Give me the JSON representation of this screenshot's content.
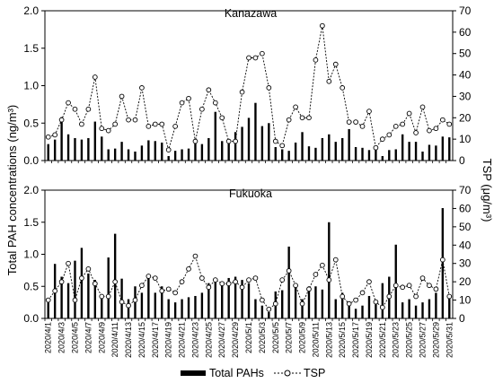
{
  "chart_data": {
    "type": "bar",
    "ylabel_left": "Total PAH concentrations (ng/m³)",
    "ylabel_right": "TSP (μg/m³)",
    "ylim_left": [
      0,
      2.0
    ],
    "ylim_right": [
      0,
      70
    ],
    "yticks_left": [
      "0.0",
      "0.5",
      "1.0",
      "1.5",
      "2.0"
    ],
    "yticks_right": [
      "0",
      "10",
      "20",
      "30",
      "40",
      "50",
      "60",
      "70"
    ],
    "dates": [
      "2020/4/1",
      "2020/4/2",
      "2020/4/3",
      "2020/4/4",
      "2020/4/5",
      "2020/4/6",
      "2020/4/7",
      "2020/4/8",
      "2020/4/9",
      "2020/4/10",
      "2020/4/11",
      "2020/4/12",
      "2020/4/13",
      "2020/4/14",
      "2020/4/15",
      "2020/4/16",
      "2020/4/17",
      "2020/4/18",
      "2020/4/19",
      "2020/4/20",
      "2020/4/21",
      "2020/4/22",
      "2020/4/23",
      "2020/4/24",
      "2020/4/25",
      "2020/4/26",
      "2020/4/27",
      "2020/4/28",
      "2020/4/29",
      "2020/4/30",
      "2020/5/1",
      "2020/5/2",
      "2020/5/3",
      "2020/5/4",
      "2020/5/5",
      "2020/5/6",
      "2020/5/7",
      "2020/5/8",
      "2020/5/9",
      "2020/5/10",
      "2020/5/11",
      "2020/5/12",
      "2020/5/13",
      "2020/5/14",
      "2020/5/15",
      "2020/5/16",
      "2020/5/17",
      "2020/5/18",
      "2020/5/19",
      "2020/5/20",
      "2020/5/21",
      "2020/5/22",
      "2020/5/23",
      "2020/5/24",
      "2020/5/25",
      "2020/5/26",
      "2020/5/27",
      "2020/5/28",
      "2020/5/29",
      "2020/5/30",
      "2020/5/31"
    ],
    "date_labels": [
      "2020/4/1",
      "2020/4/3",
      "2020/4/5",
      "2020/4/7",
      "2020/4/9",
      "2020/4/11",
      "2020/4/13",
      "2020/4/15",
      "2020/4/17",
      "2020/4/19",
      "2020/4/21",
      "2020/4/23",
      "2020/4/25",
      "2020/4/27",
      "2020/4/29",
      "2020/5/1",
      "2020/5/3",
      "2020/5/5",
      "2020/5/7",
      "2020/5/9",
      "2020/5/11",
      "2020/5/13",
      "2020/5/15",
      "2020/5/17",
      "2020/5/19",
      "2020/5/21",
      "2020/5/23",
      "2020/5/25",
      "2020/5/27",
      "2020/5/29",
      "2020/5/31"
    ],
    "legend": {
      "bars": "Total PAHs",
      "line": "TSP"
    },
    "panels": [
      {
        "title": "Kanazawa",
        "total_pahs": [
          0.22,
          0.28,
          0.58,
          0.35,
          0.3,
          0.28,
          0.3,
          0.52,
          0.32,
          0.15,
          0.16,
          0.25,
          0.15,
          0.12,
          0.2,
          0.27,
          0.26,
          0.24,
          0.06,
          0.13,
          0.15,
          0.16,
          0.28,
          0.22,
          0.3,
          0.65,
          0.26,
          0.24,
          0.38,
          0.45,
          0.57,
          0.77,
          0.46,
          0.5,
          0.18,
          0.15,
          0.13,
          0.24,
          0.38,
          0.19,
          0.17,
          0.3,
          0.35,
          0.25,
          0.3,
          0.42,
          0.18,
          0.17,
          0.14,
          0.17,
          0.06,
          0.14,
          0.15,
          0.35,
          0.25,
          0.25,
          0.12,
          0.21,
          0.2,
          0.32,
          0.31
        ],
        "tsp": [
          11,
          12,
          19,
          27,
          24,
          17,
          24,
          39,
          15,
          14,
          17,
          30,
          19,
          19,
          34,
          16,
          17,
          17,
          5,
          16,
          27,
          29,
          9,
          24,
          33,
          27,
          20,
          9,
          9,
          32,
          48,
          48,
          50,
          34,
          9,
          7,
          19,
          25,
          20,
          20,
          47,
          63,
          37,
          45,
          34,
          18,
          18,
          16,
          23,
          6,
          10,
          12,
          16,
          17,
          22,
          13,
          25,
          14,
          15,
          19,
          17
        ]
      },
      {
        "title": "Fukuoka",
        "total_pahs": [
          0.25,
          0.85,
          0.65,
          0.55,
          0.9,
          1.1,
          0.7,
          0.6,
          0.35,
          0.95,
          1.32,
          0.62,
          0.3,
          0.5,
          0.4,
          0.65,
          0.4,
          0.5,
          0.3,
          0.25,
          0.3,
          0.33,
          0.35,
          0.4,
          0.55,
          0.62,
          0.55,
          0.63,
          0.65,
          0.6,
          0.55,
          0.3,
          0.2,
          0.1,
          0.42,
          0.44,
          1.12,
          0.5,
          0.3,
          0.5,
          0.5,
          0.45,
          1.5,
          0.3,
          0.4,
          0.25,
          0.15,
          0.2,
          0.35,
          0.22,
          0.55,
          0.65,
          1.15,
          0.25,
          0.3,
          0.2,
          0.25,
          0.3,
          0.4,
          1.72,
          0.35
        ],
        "tsp": [
          10,
          15,
          20,
          30,
          10,
          22,
          27,
          19,
          12,
          12,
          20,
          9,
          7,
          10,
          18,
          23,
          22,
          15,
          16,
          14,
          20,
          27,
          34,
          22,
          17,
          21,
          19,
          19,
          20,
          17,
          21,
          22,
          10,
          5,
          8,
          21,
          26,
          18,
          8,
          16,
          24,
          29,
          21,
          32,
          12,
          8,
          10,
          14,
          20,
          9,
          6,
          12,
          18,
          17,
          18,
          12,
          22,
          18,
          16,
          32,
          12
        ]
      }
    ]
  }
}
